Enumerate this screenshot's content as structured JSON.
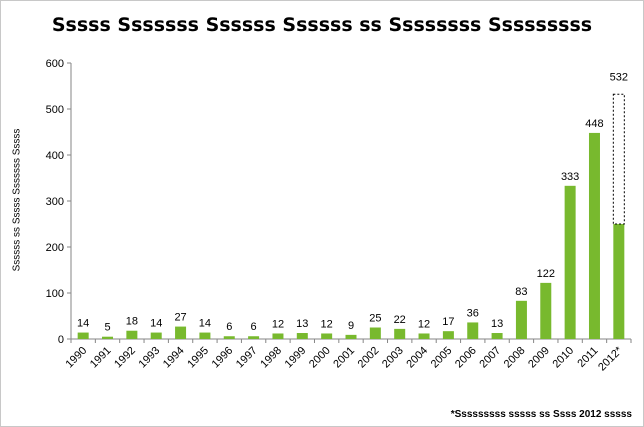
{
  "chart_data": {
    "type": "bar",
    "title": "Sssss Sssssss Ssssss Ssssss ss Ssssssss Sssssssss",
    "ylabel": "Ssssss ss Sssss Sssssss Sssss",
    "xlabel": "",
    "footnote": "*Sssssssss sssss ss Ssss 2012 sssss",
    "ylim": [
      0,
      600
    ],
    "yticks": [
      0,
      100,
      200,
      300,
      400,
      500,
      600
    ],
    "grid": false,
    "legend": "none",
    "bar_color": "#78b92e",
    "categories": [
      "1990",
      "1991",
      "1992",
      "1993",
      "1994",
      "1995",
      "1996",
      "1997",
      "1998",
      "1999",
      "2000",
      "2001",
      "2002",
      "2003",
      "2004",
      "2005",
      "2006",
      "2007",
      "2008",
      "2009",
      "2010",
      "2011",
      "2012*"
    ],
    "values": [
      14,
      5,
      18,
      14,
      27,
      14,
      6,
      6,
      12,
      13,
      12,
      9,
      25,
      22,
      12,
      17,
      36,
      13,
      83,
      122,
      333,
      448,
      250
    ],
    "data_labels": [
      "14",
      "5",
      "18",
      "14",
      "27",
      "14",
      "6",
      "6",
      "12",
      "13",
      "12",
      "9",
      "25",
      "22",
      "12",
      "17",
      "36",
      "13",
      "83",
      "122",
      "333",
      "448",
      ""
    ],
    "projection": {
      "category": "2012*",
      "value": 532,
      "label": "532",
      "style": "dashed outline"
    }
  }
}
